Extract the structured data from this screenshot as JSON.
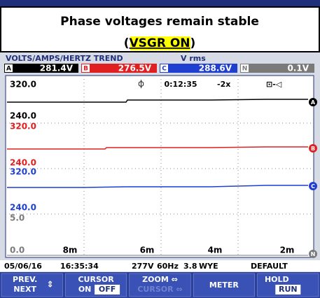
{
  "title": "Phase voltages remain stable",
  "subtitle": {
    "prefix": "(",
    "highlight": "VSGR ON",
    "suffix": ")"
  },
  "screen": {
    "header": {
      "mode": "VOLTS/AMPS/HERTZ TREND",
      "unit": "V rms"
    },
    "readings": [
      {
        "phase": "A",
        "value": "281.4V",
        "color": "#000000"
      },
      {
        "phase": "B",
        "value": "276.5V",
        "color": "#e02020"
      },
      {
        "phase": "C",
        "value": "288.6V",
        "color": "#1f3fd0"
      },
      {
        "phase": "N",
        "value": "0.1V",
        "color": "#7a7a7a"
      }
    ],
    "elapsed": "0:12:35",
    "zoom": "-2x",
    "scale_labels": [
      {
        "text": "320.0",
        "color": "#000000"
      },
      {
        "text": "240.0",
        "color": "#000000"
      },
      {
        "text": "320.0",
        "color": "#e02020"
      },
      {
        "text": "240.0",
        "color": "#e02020"
      },
      {
        "text": "320.0",
        "color": "#1f3fd0"
      },
      {
        "text": "240.0",
        "color": "#1f3fd0"
      },
      {
        "text": "5.0",
        "color": "#7a7a7a"
      },
      {
        "text": "0.0",
        "color": "#7a7a7a"
      }
    ],
    "time_labels": [
      "8m",
      "6m",
      "4m",
      "2m"
    ],
    "status": [
      "05/06/16",
      "16:35:34",
      "277V",
      "60Hz",
      "3.8",
      "WYE",
      "DEFAULT"
    ],
    "buttons": [
      {
        "lines": [
          "PREV.",
          "NEXT"
        ],
        "symbol": "⇕"
      },
      {
        "lines": [
          "CURSOR",
          "ON"
        ],
        "highlight": "OFF"
      },
      {
        "lines": [
          "ZOOM ⇔",
          "CURSOR ⇔"
        ]
      },
      {
        "lines": [
          "METER"
        ]
      },
      {
        "lines": [
          "HOLD"
        ],
        "highlight": "RUN"
      }
    ]
  }
}
